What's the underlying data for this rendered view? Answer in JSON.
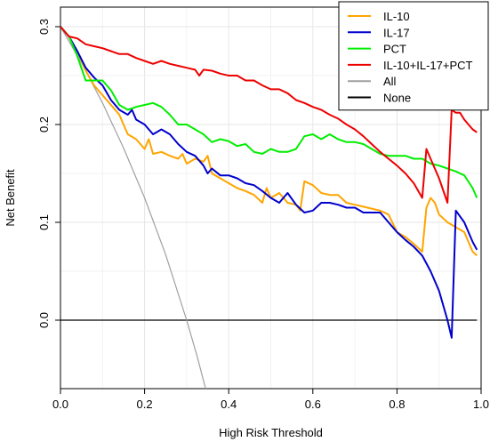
{
  "chart_data": {
    "type": "line",
    "title": "",
    "xlabel": "High Risk Threshold",
    "ylabel": "Net Benefit",
    "xlim": [
      0,
      1
    ],
    "ylim": [
      -0.07,
      0.32
    ],
    "xticks": [
      "0.0",
      "0.2",
      "0.4",
      "0.6",
      "0.8",
      "1.0"
    ],
    "xtick_values": [
      0,
      0.2,
      0.4,
      0.6,
      0.8,
      1.0
    ],
    "yticks": [
      "0.0",
      "0.1",
      "0.2",
      "0.3"
    ],
    "ytick_values": [
      0,
      0.1,
      0.2,
      0.3
    ],
    "grid": true,
    "legend_position": "top-right",
    "series": [
      {
        "name": "IL-10",
        "color": "#FFA500",
        "points": [
          [
            0.0,
            0.3
          ],
          [
            0.02,
            0.29
          ],
          [
            0.04,
            0.275
          ],
          [
            0.06,
            0.255
          ],
          [
            0.08,
            0.24
          ],
          [
            0.1,
            0.23
          ],
          [
            0.12,
            0.22
          ],
          [
            0.14,
            0.21
          ],
          [
            0.15,
            0.2
          ],
          [
            0.16,
            0.19
          ],
          [
            0.18,
            0.185
          ],
          [
            0.2,
            0.175
          ],
          [
            0.21,
            0.185
          ],
          [
            0.22,
            0.17
          ],
          [
            0.24,
            0.172
          ],
          [
            0.26,
            0.168
          ],
          [
            0.28,
            0.165
          ],
          [
            0.29,
            0.17
          ],
          [
            0.3,
            0.16
          ],
          [
            0.32,
            0.165
          ],
          [
            0.34,
            0.162
          ],
          [
            0.35,
            0.168
          ],
          [
            0.36,
            0.15
          ],
          [
            0.38,
            0.145
          ],
          [
            0.4,
            0.14
          ],
          [
            0.42,
            0.135
          ],
          [
            0.44,
            0.132
          ],
          [
            0.46,
            0.128
          ],
          [
            0.48,
            0.12
          ],
          [
            0.49,
            0.135
          ],
          [
            0.5,
            0.125
          ],
          [
            0.52,
            0.13
          ],
          [
            0.54,
            0.12
          ],
          [
            0.56,
            0.118
          ],
          [
            0.57,
            0.112
          ],
          [
            0.58,
            0.142
          ],
          [
            0.6,
            0.138
          ],
          [
            0.62,
            0.13
          ],
          [
            0.64,
            0.128
          ],
          [
            0.66,
            0.128
          ],
          [
            0.68,
            0.12
          ],
          [
            0.7,
            0.118
          ],
          [
            0.72,
            0.116
          ],
          [
            0.74,
            0.114
          ],
          [
            0.76,
            0.112
          ],
          [
            0.78,
            0.108
          ],
          [
            0.8,
            0.09
          ],
          [
            0.82,
            0.085
          ],
          [
            0.84,
            0.078
          ],
          [
            0.86,
            0.07
          ],
          [
            0.87,
            0.115
          ],
          [
            0.88,
            0.125
          ],
          [
            0.89,
            0.12
          ],
          [
            0.9,
            0.108
          ],
          [
            0.92,
            0.1
          ],
          [
            0.94,
            0.095
          ],
          [
            0.96,
            0.09
          ],
          [
            0.97,
            0.08
          ],
          [
            0.98,
            0.07
          ],
          [
            0.99,
            0.066
          ]
        ]
      },
      {
        "name": "IL-17",
        "color": "#0000CD",
        "points": [
          [
            0.0,
            0.3
          ],
          [
            0.02,
            0.29
          ],
          [
            0.04,
            0.275
          ],
          [
            0.06,
            0.258
          ],
          [
            0.08,
            0.248
          ],
          [
            0.1,
            0.24
          ],
          [
            0.12,
            0.225
          ],
          [
            0.14,
            0.215
          ],
          [
            0.16,
            0.21
          ],
          [
            0.17,
            0.215
          ],
          [
            0.18,
            0.205
          ],
          [
            0.2,
            0.2
          ],
          [
            0.22,
            0.19
          ],
          [
            0.24,
            0.195
          ],
          [
            0.26,
            0.19
          ],
          [
            0.28,
            0.18
          ],
          [
            0.3,
            0.172
          ],
          [
            0.32,
            0.168
          ],
          [
            0.34,
            0.158
          ],
          [
            0.35,
            0.15
          ],
          [
            0.36,
            0.155
          ],
          [
            0.38,
            0.148
          ],
          [
            0.4,
            0.148
          ],
          [
            0.42,
            0.145
          ],
          [
            0.44,
            0.14
          ],
          [
            0.46,
            0.138
          ],
          [
            0.48,
            0.132
          ],
          [
            0.5,
            0.125
          ],
          [
            0.52,
            0.12
          ],
          [
            0.54,
            0.13
          ],
          [
            0.56,
            0.118
          ],
          [
            0.58,
            0.11
          ],
          [
            0.6,
            0.112
          ],
          [
            0.62,
            0.12
          ],
          [
            0.64,
            0.12
          ],
          [
            0.66,
            0.118
          ],
          [
            0.68,
            0.115
          ],
          [
            0.7,
            0.115
          ],
          [
            0.72,
            0.11
          ],
          [
            0.74,
            0.11
          ],
          [
            0.76,
            0.11
          ],
          [
            0.78,
            0.1
          ],
          [
            0.8,
            0.09
          ],
          [
            0.82,
            0.082
          ],
          [
            0.84,
            0.075
          ],
          [
            0.86,
            0.066
          ],
          [
            0.88,
            0.05
          ],
          [
            0.9,
            0.03
          ],
          [
            0.92,
            0.0
          ],
          [
            0.93,
            -0.018
          ],
          [
            0.94,
            0.112
          ],
          [
            0.96,
            0.1
          ],
          [
            0.98,
            0.08
          ],
          [
            0.99,
            0.072
          ]
        ]
      },
      {
        "name": "PCT",
        "color": "#00EE00",
        "points": [
          [
            0.0,
            0.3
          ],
          [
            0.02,
            0.29
          ],
          [
            0.04,
            0.27
          ],
          [
            0.06,
            0.245
          ],
          [
            0.08,
            0.245
          ],
          [
            0.1,
            0.245
          ],
          [
            0.12,
            0.235
          ],
          [
            0.14,
            0.22
          ],
          [
            0.16,
            0.215
          ],
          [
            0.18,
            0.218
          ],
          [
            0.2,
            0.22
          ],
          [
            0.22,
            0.222
          ],
          [
            0.24,
            0.218
          ],
          [
            0.26,
            0.21
          ],
          [
            0.28,
            0.2
          ],
          [
            0.3,
            0.2
          ],
          [
            0.32,
            0.195
          ],
          [
            0.34,
            0.19
          ],
          [
            0.36,
            0.182
          ],
          [
            0.38,
            0.185
          ],
          [
            0.4,
            0.183
          ],
          [
            0.42,
            0.178
          ],
          [
            0.44,
            0.18
          ],
          [
            0.46,
            0.172
          ],
          [
            0.48,
            0.17
          ],
          [
            0.5,
            0.175
          ],
          [
            0.52,
            0.172
          ],
          [
            0.54,
            0.172
          ],
          [
            0.56,
            0.175
          ],
          [
            0.58,
            0.188
          ],
          [
            0.6,
            0.19
          ],
          [
            0.62,
            0.185
          ],
          [
            0.64,
            0.19
          ],
          [
            0.66,
            0.185
          ],
          [
            0.68,
            0.182
          ],
          [
            0.7,
            0.182
          ],
          [
            0.72,
            0.18
          ],
          [
            0.74,
            0.175
          ],
          [
            0.76,
            0.17
          ],
          [
            0.78,
            0.168
          ],
          [
            0.8,
            0.168
          ],
          [
            0.82,
            0.168
          ],
          [
            0.84,
            0.165
          ],
          [
            0.86,
            0.165
          ],
          [
            0.88,
            0.16
          ],
          [
            0.9,
            0.158
          ],
          [
            0.92,
            0.155
          ],
          [
            0.94,
            0.152
          ],
          [
            0.96,
            0.148
          ],
          [
            0.98,
            0.135
          ],
          [
            0.99,
            0.125
          ]
        ]
      },
      {
        "name": "IL-10+IL-17+PCT",
        "color": "#EE0000",
        "points": [
          [
            0.0,
            0.3
          ],
          [
            0.02,
            0.29
          ],
          [
            0.04,
            0.288
          ],
          [
            0.06,
            0.282
          ],
          [
            0.08,
            0.28
          ],
          [
            0.1,
            0.278
          ],
          [
            0.12,
            0.275
          ],
          [
            0.14,
            0.272
          ],
          [
            0.16,
            0.272
          ],
          [
            0.18,
            0.268
          ],
          [
            0.2,
            0.265
          ],
          [
            0.22,
            0.262
          ],
          [
            0.24,
            0.265
          ],
          [
            0.26,
            0.262
          ],
          [
            0.28,
            0.26
          ],
          [
            0.3,
            0.258
          ],
          [
            0.32,
            0.256
          ],
          [
            0.33,
            0.25
          ],
          [
            0.34,
            0.256
          ],
          [
            0.36,
            0.255
          ],
          [
            0.38,
            0.252
          ],
          [
            0.4,
            0.25
          ],
          [
            0.42,
            0.25
          ],
          [
            0.44,
            0.245
          ],
          [
            0.46,
            0.245
          ],
          [
            0.48,
            0.24
          ],
          [
            0.5,
            0.236
          ],
          [
            0.52,
            0.236
          ],
          [
            0.54,
            0.232
          ],
          [
            0.56,
            0.225
          ],
          [
            0.58,
            0.222
          ],
          [
            0.6,
            0.218
          ],
          [
            0.62,
            0.215
          ],
          [
            0.64,
            0.21
          ],
          [
            0.66,
            0.206
          ],
          [
            0.68,
            0.2
          ],
          [
            0.7,
            0.195
          ],
          [
            0.72,
            0.188
          ],
          [
            0.74,
            0.18
          ],
          [
            0.76,
            0.172
          ],
          [
            0.78,
            0.165
          ],
          [
            0.8,
            0.158
          ],
          [
            0.82,
            0.15
          ],
          [
            0.84,
            0.14
          ],
          [
            0.86,
            0.125
          ],
          [
            0.87,
            0.175
          ],
          [
            0.88,
            0.165
          ],
          [
            0.9,
            0.145
          ],
          [
            0.92,
            0.12
          ],
          [
            0.93,
            0.215
          ],
          [
            0.94,
            0.212
          ],
          [
            0.95,
            0.212
          ],
          [
            0.96,
            0.205
          ],
          [
            0.98,
            0.195
          ],
          [
            0.99,
            0.192
          ]
        ]
      },
      {
        "name": "All",
        "color": "#A0A0A0",
        "points": [
          [
            0.0,
            0.3
          ],
          [
            0.05,
            0.263
          ],
          [
            0.1,
            0.222
          ],
          [
            0.15,
            0.176
          ],
          [
            0.2,
            0.125
          ],
          [
            0.25,
            0.067
          ],
          [
            0.3,
            0.0
          ],
          [
            0.325,
            -0.037
          ],
          [
            0.345,
            -0.07
          ]
        ]
      },
      {
        "name": "None",
        "color": "#000000",
        "points": [
          [
            0.0,
            0.0
          ],
          [
            0.99,
            0.0
          ]
        ]
      }
    ]
  }
}
